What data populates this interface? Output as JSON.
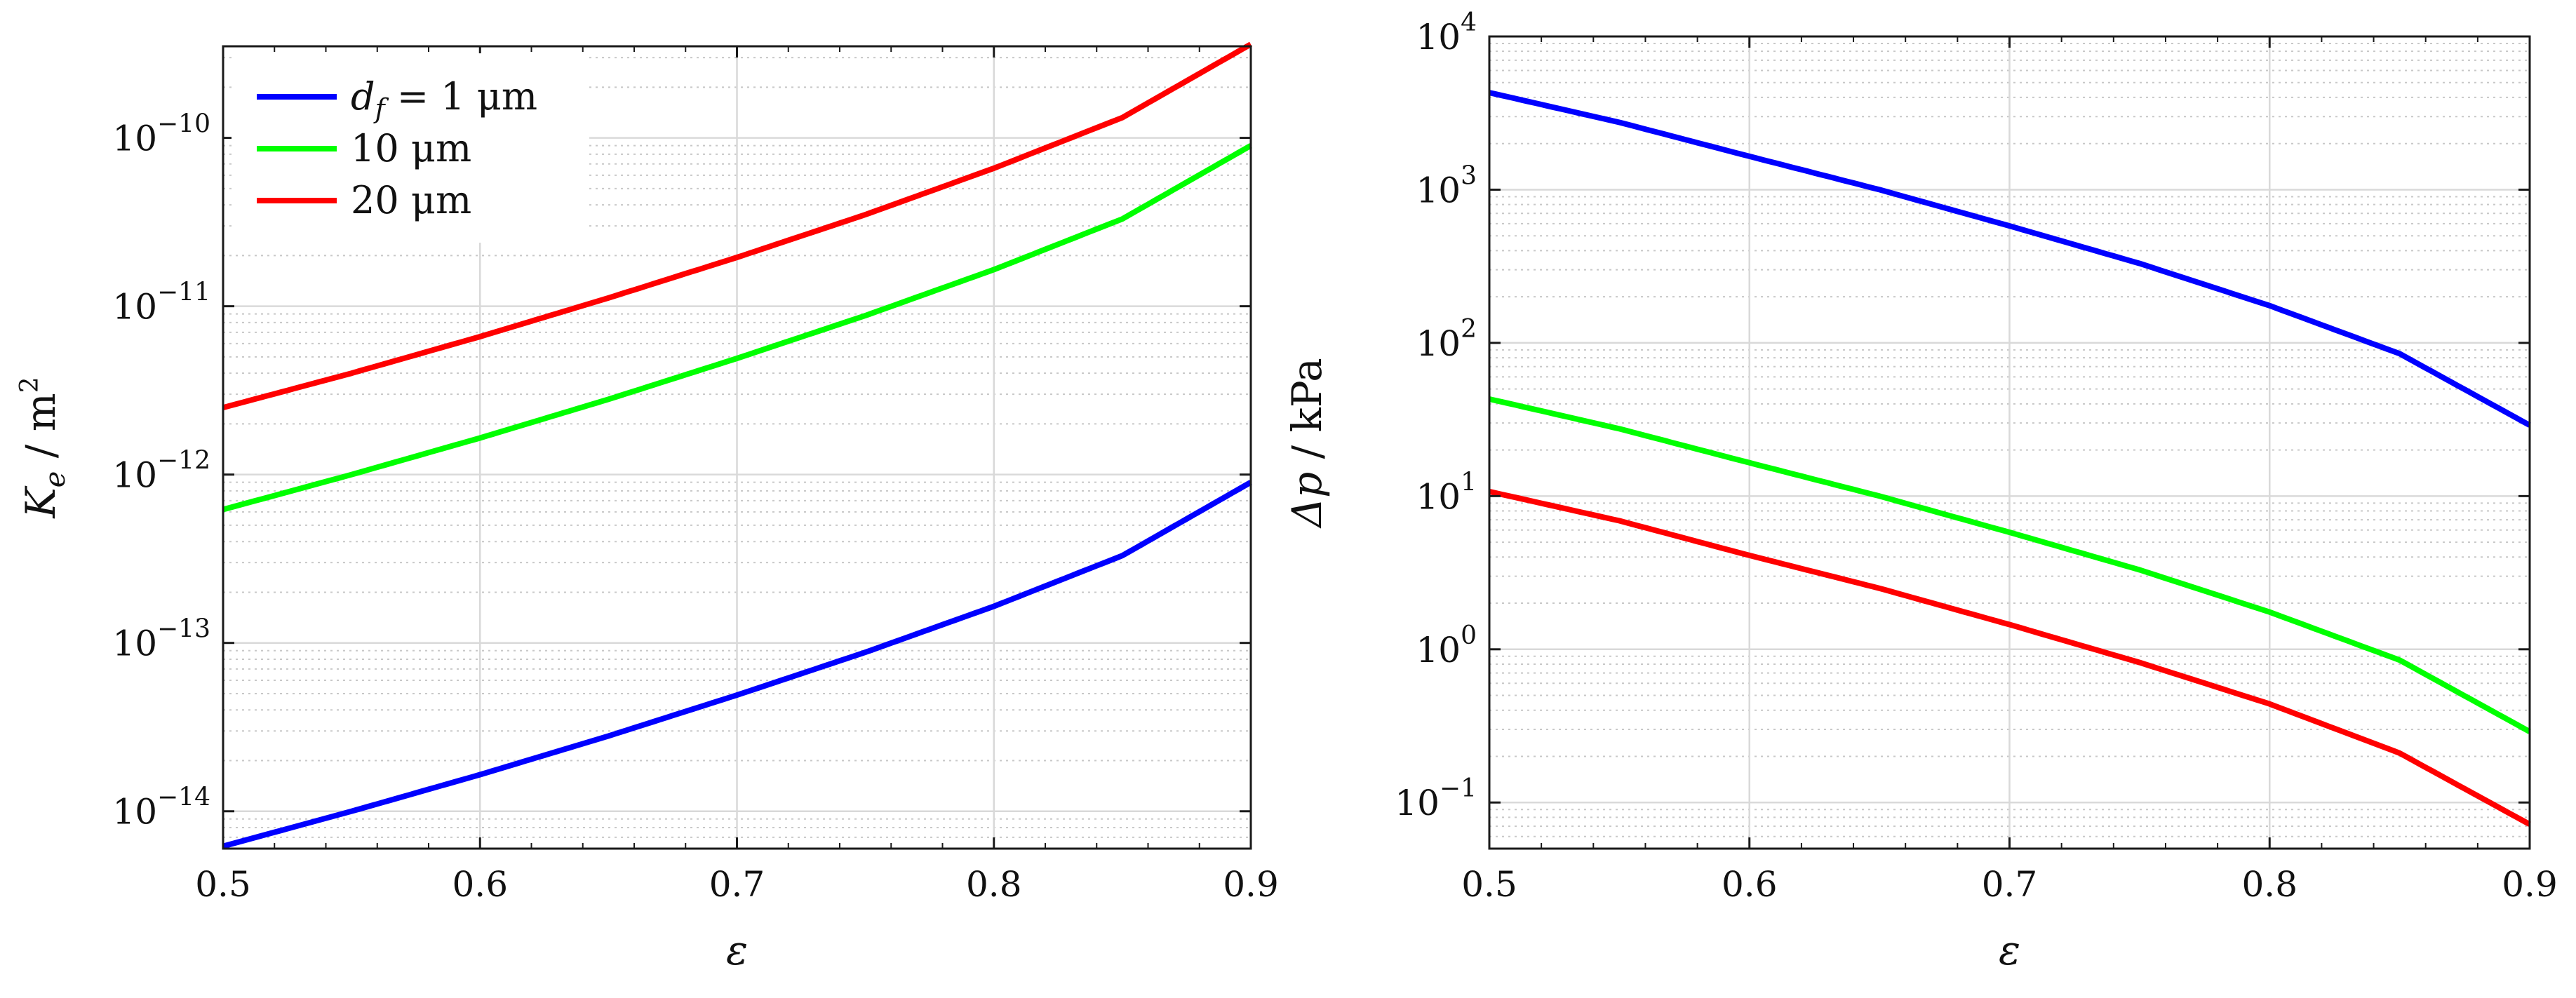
{
  "chart_data": [
    {
      "type": "line",
      "yscale": "log",
      "xlabel": "ε",
      "ylabel_main": "K",
      "ylabel_sub": "e",
      "ylabel_sep": " / ",
      "ylabel_unit": "m",
      "ylabel_unit_sup": "2",
      "xlim": [
        0.5,
        0.9
      ],
      "ylim": [
        6e-15,
        3.5e-10
      ],
      "xticks": [
        0.5,
        0.6,
        0.7,
        0.8,
        0.9
      ],
      "xtick_labels": [
        "0.5",
        "0.6",
        "0.7",
        "0.8",
        "0.9"
      ],
      "yticks": [
        {
          "value": 1e-14,
          "base": "10",
          "exp": "−14"
        },
        {
          "value": 1e-13,
          "base": "10",
          "exp": "−13"
        },
        {
          "value": 1e-12,
          "base": "10",
          "exp": "−12"
        },
        {
          "value": 1e-11,
          "base": "10",
          "exp": "−11"
        },
        {
          "value": 1e-10,
          "base": "10",
          "exp": "−10"
        }
      ],
      "grid": true,
      "legend_position": "top-left",
      "legend": [
        {
          "prefix": "d",
          "sub": "f",
          "text": " = 1 μm",
          "color": "#0000ff"
        },
        {
          "prefix": "",
          "sub": "",
          "text": "10 μm",
          "color": "#00ff00"
        },
        {
          "prefix": "",
          "sub": "",
          "text": "20 μm",
          "color": "#ff0000"
        }
      ],
      "x": [
        0.5,
        0.55,
        0.6,
        0.65,
        0.7,
        0.75,
        0.8,
        0.85,
        0.9
      ],
      "series": [
        {
          "name": "1 μm",
          "color": "#0000ff",
          "values": [
            6.2e-15,
            1e-14,
            1.65e-14,
            2.8e-14,
            4.9e-14,
            8.8e-14,
            1.65e-13,
            3.3e-13,
            9e-13
          ]
        },
        {
          "name": "10 μm",
          "color": "#00ff00",
          "values": [
            6.2e-13,
            1e-12,
            1.65e-12,
            2.8e-12,
            4.9e-12,
            8.8e-12,
            1.65e-11,
            3.3e-11,
            9e-11
          ]
        },
        {
          "name": "20 μm",
          "color": "#ff0000",
          "values": [
            2.5e-12,
            4e-12,
            6.6e-12,
            1.12e-11,
            1.95e-11,
            3.5e-11,
            6.6e-11,
            1.32e-10,
            3.6e-10
          ]
        }
      ]
    },
    {
      "type": "line",
      "yscale": "log",
      "xlabel": "ε",
      "ylabel_main": "Δp",
      "ylabel_sub": "",
      "ylabel_sep": " / ",
      "ylabel_unit": "kPa",
      "ylabel_unit_sup": "",
      "xlim": [
        0.5,
        0.9
      ],
      "ylim": [
        0.05,
        10000
      ],
      "xticks": [
        0.5,
        0.6,
        0.7,
        0.8,
        0.9
      ],
      "xtick_labels": [
        "0.5",
        "0.6",
        "0.7",
        "0.8",
        "0.9"
      ],
      "yticks": [
        {
          "value": 0.1,
          "base": "10",
          "exp": "−1"
        },
        {
          "value": 1,
          "base": "10",
          "exp": "0"
        },
        {
          "value": 10,
          "base": "10",
          "exp": "1"
        },
        {
          "value": 100,
          "base": "10",
          "exp": "2"
        },
        {
          "value": 1000,
          "base": "10",
          "exp": "3"
        },
        {
          "value": 10000,
          "base": "10",
          "exp": "4"
        }
      ],
      "grid": true,
      "x": [
        0.5,
        0.55,
        0.6,
        0.65,
        0.7,
        0.75,
        0.8,
        0.85,
        0.9
      ],
      "series": [
        {
          "name": "1 μm",
          "color": "#0000ff",
          "values": [
            4300,
            2750,
            1650,
            1000,
            580,
            330,
            175,
            85,
            29
          ]
        },
        {
          "name": "10 μm",
          "color": "#00ff00",
          "values": [
            43,
            27.5,
            16.5,
            10,
            5.8,
            3.3,
            1.75,
            0.85,
            0.29
          ]
        },
        {
          "name": "20 μm",
          "color": "#ff0000",
          "values": [
            10.7,
            6.9,
            4.1,
            2.5,
            1.45,
            0.82,
            0.44,
            0.21,
            0.072
          ]
        }
      ]
    }
  ]
}
